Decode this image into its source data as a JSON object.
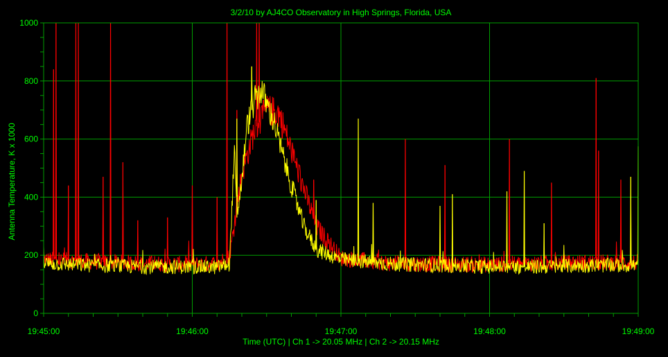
{
  "chart_data": {
    "type": "line",
    "title": "3/2/10  by  AJ4CO Observatory  in  High Springs, Florida, USA",
    "xlabel": "Time (UTC)  |  Ch 1 -> 20.05 MHz  |  Ch 2 -> 20.15 MHz",
    "ylabel": "Antenna Temperature, K x 1000",
    "xlim": [
      "19:45:00",
      "19:49:00"
    ],
    "ylim": [
      0,
      1000
    ],
    "x_ticks": [
      "19:45:00",
      "19:46:00",
      "19:47:00",
      "19:48:00",
      "19:49:00"
    ],
    "y_ticks": [
      "0",
      "200",
      "400",
      "600",
      "800",
      "1000"
    ],
    "grid": true,
    "series": [
      {
        "color": "#ff0000",
        "x": [
          "19:45:00",
          "19:45:20",
          "19:45:40",
          "19:46:00",
          "19:46:10",
          "19:46:15",
          "19:46:20",
          "19:46:25",
          "19:46:30",
          "19:46:35",
          "19:46:40",
          "19:46:50",
          "19:47:00",
          "19:47:20",
          "19:47:40",
          "19:48:00",
          "19:48:20",
          "19:48:40",
          "19:49:00"
        ],
        "values": [
          185,
          178,
          172,
          168,
          172,
          195,
          480,
          630,
          700,
          690,
          560,
          300,
          190,
          172,
          170,
          168,
          172,
          175,
          175
        ],
        "spikes": [
          {
            "x": "19:45:04",
            "y": 840
          },
          {
            "x": "19:45:05",
            "y": 1000
          },
          {
            "x": "19:45:10",
            "y": 440
          },
          {
            "x": "19:45:13",
            "y": 1000
          },
          {
            "x": "19:45:14",
            "y": 1000
          },
          {
            "x": "19:45:24",
            "y": 470
          },
          {
            "x": "19:45:27",
            "y": 1000
          },
          {
            "x": "19:45:32",
            "y": 520
          },
          {
            "x": "19:45:38",
            "y": 320
          },
          {
            "x": "19:45:50",
            "y": 330
          },
          {
            "x": "19:46:00",
            "y": 440
          },
          {
            "x": "19:46:10",
            "y": 400
          },
          {
            "x": "19:46:14",
            "y": 1000
          },
          {
            "x": "19:46:18",
            "y": 700
          },
          {
            "x": "19:46:26",
            "y": 1000
          },
          {
            "x": "19:46:27",
            "y": 1000
          },
          {
            "x": "19:46:49",
            "y": 460
          },
          {
            "x": "19:47:26",
            "y": 600
          },
          {
            "x": "19:47:42",
            "y": 510
          },
          {
            "x": "19:48:08",
            "y": 600
          },
          {
            "x": "19:48:25",
            "y": 450
          },
          {
            "x": "19:48:43",
            "y": 810
          },
          {
            "x": "19:48:44",
            "y": 560
          },
          {
            "x": "19:48:53",
            "y": 460
          }
        ]
      },
      {
        "color": "#ffff00",
        "x": [
          "19:45:00",
          "19:45:20",
          "19:45:40",
          "19:46:00",
          "19:46:10",
          "19:46:15",
          "19:46:17",
          "19:46:18",
          "19:46:20",
          "19:46:22",
          "19:46:25",
          "19:46:28",
          "19:46:30",
          "19:46:33",
          "19:46:36",
          "19:46:40",
          "19:46:45",
          "19:46:50",
          "19:47:00",
          "19:47:20",
          "19:47:40",
          "19:48:00",
          "19:48:20",
          "19:48:40",
          "19:49:00"
        ],
        "values": [
          172,
          165,
          160,
          160,
          158,
          170,
          560,
          330,
          460,
          640,
          730,
          770,
          720,
          660,
          560,
          440,
          300,
          220,
          185,
          170,
          165,
          160,
          160,
          165,
          165
        ],
        "spikes": [
          {
            "x": "19:46:18",
            "y": 670
          },
          {
            "x": "19:46:24",
            "y": 850
          },
          {
            "x": "19:46:50",
            "y": 390
          },
          {
            "x": "19:47:07",
            "y": 670
          },
          {
            "x": "19:47:13",
            "y": 380
          },
          {
            "x": "19:47:40",
            "y": 370
          },
          {
            "x": "19:47:45",
            "y": 410
          },
          {
            "x": "19:48:07",
            "y": 420
          },
          {
            "x": "19:48:14",
            "y": 490
          },
          {
            "x": "19:48:22",
            "y": 310
          },
          {
            "x": "19:48:57",
            "y": 470
          },
          {
            "x": "19:49:00",
            "y": 575
          }
        ]
      }
    ]
  }
}
